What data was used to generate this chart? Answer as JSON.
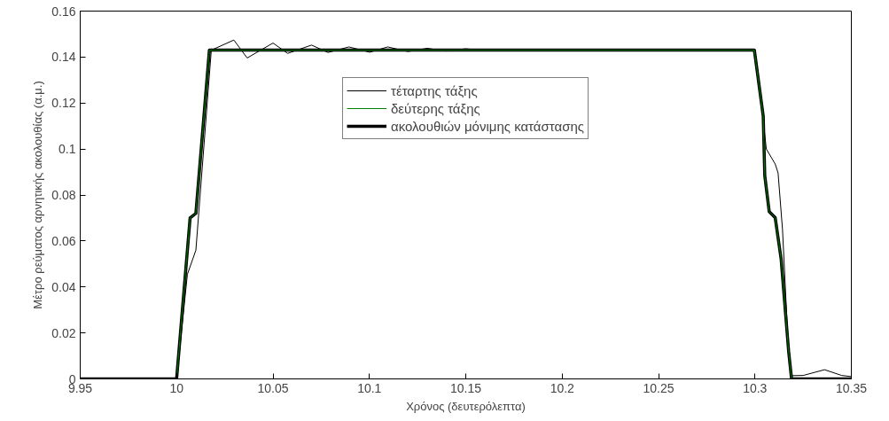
{
  "chart_data": {
    "type": "line",
    "xlabel": "Χρόνος (δευτερόλεπτα)",
    "ylabel": "Μέτρο ρεύματος αρνητικής ακολουθίας (α.μ.)",
    "xlim": [
      9.95,
      10.35
    ],
    "ylim": [
      0,
      0.16
    ],
    "xticks": [
      9.95,
      10,
      10.05,
      10.1,
      10.15,
      10.2,
      10.25,
      10.3,
      10.35
    ],
    "yticks": [
      0,
      0.02,
      0.04,
      0.06,
      0.08,
      0.1,
      0.12,
      0.14,
      0.16
    ],
    "grid": false,
    "legend": "top",
    "marker": "none",
    "line_style": "solid",
    "series": [
      {
        "name": "τέταρτης τάξης",
        "color": "#000000",
        "x": [
          9.95,
          10.0,
          10.0056,
          10.01,
          10.018,
          10.0297,
          10.0366,
          10.05,
          10.0576,
          10.07,
          10.0785,
          10.0894,
          10.1002,
          10.1095,
          10.12,
          10.13,
          10.14,
          10.15,
          10.16,
          10.18,
          10.2,
          10.3,
          10.302,
          10.3059,
          10.3105,
          10.312,
          10.3143,
          10.3175,
          10.319,
          10.325,
          10.3361,
          10.345,
          10.35
        ],
        "values": [
          0,
          0,
          0.0455,
          0.056,
          0.143,
          0.1474,
          0.1396,
          0.1461,
          0.1416,
          0.1452,
          0.142,
          0.1444,
          0.1421,
          0.1444,
          0.1424,
          0.1438,
          0.1426,
          0.1436,
          0.1428,
          0.1432,
          0.143,
          0.143,
          0.13,
          0.1,
          0.0935,
          0.0896,
          0.065,
          0.01,
          0.0014,
          0.0015,
          0.004,
          0.0015,
          0.001
        ]
      },
      {
        "name": "δεύτερης τάξης",
        "color": "#008000",
        "x": [
          10.0,
          10.007,
          10.01,
          10.017,
          10.2997,
          10.3043,
          10.3051,
          10.3074,
          10.3105,
          10.3136,
          10.3175,
          10.319
        ],
        "values": [
          0,
          0.07,
          0.072,
          0.143,
          0.143,
          0.1143,
          0.0884,
          0.0728,
          0.0702,
          0.052,
          0.0118,
          0
        ]
      },
      {
        "name": "ακολουθιών μόνιμης κατάστασης",
        "color": "#000000",
        "x": [
          9.95,
          10.0,
          10.007,
          10.01,
          10.017,
          10.2997,
          10.3043,
          10.3051,
          10.3074,
          10.3105,
          10.3136,
          10.3175,
          10.319,
          10.35
        ],
        "values": [
          0,
          0,
          0.07,
          0.072,
          0.143,
          0.143,
          0.1143,
          0.0884,
          0.0728,
          0.0702,
          0.052,
          0.0118,
          0,
          0
        ]
      }
    ]
  }
}
